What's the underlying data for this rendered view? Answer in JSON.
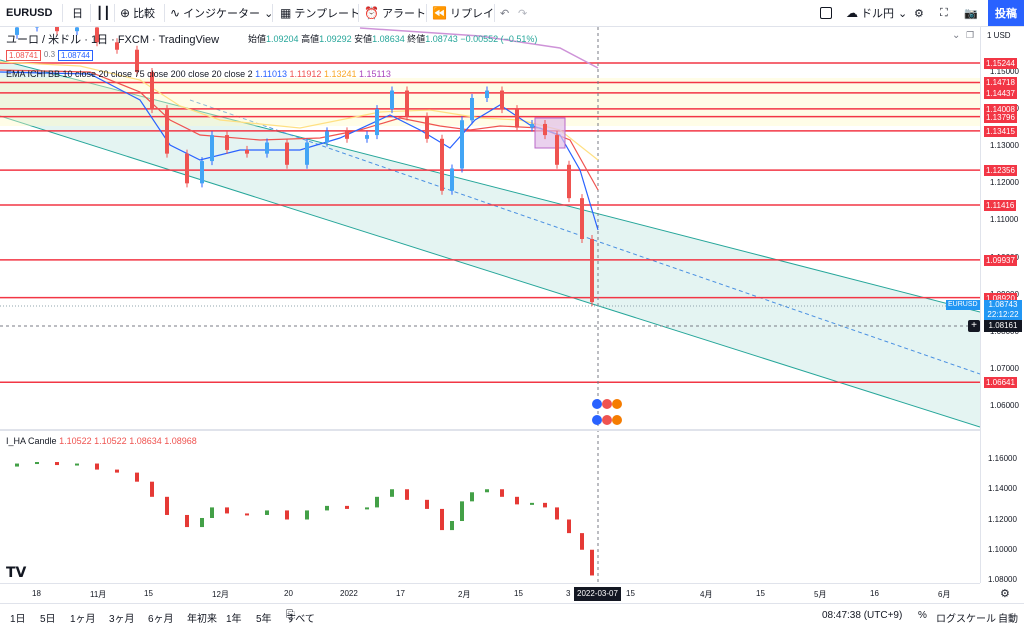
{
  "toolbar": {
    "symbol": "EURUSD",
    "interval": "日",
    "compare": "比較",
    "indicators": "インジケーター",
    "templates": "テンプレート",
    "alert": "アラート",
    "replay": "リプレイ",
    "currency": "ドル円",
    "post": "投稿"
  },
  "header": {
    "title": "ユーロ / 米ドル · 1日 · FXCM · TradingView",
    "open_label": "始値",
    "open": "1.09204",
    "high_label": "高値",
    "high": "1.09292",
    "low_label": "安値",
    "low": "1.08634",
    "close_label": "終値",
    "close": "1.08743",
    "change": "−0.00552 (−0.51%)",
    "sell_price": "1.08741",
    "spread": "0.3",
    "buy_price": "1.08744",
    "currency_unit": "1 USD"
  },
  "indicators": {
    "ichi": {
      "name": "EMA ICHI BB 10 close 20 close 75 close 200 close 20 close 2",
      "v1": "1.11013",
      "v2": "1.11912",
      "v3": "1.13241",
      "v4": "1.15113"
    },
    "ha": {
      "name": "I_HA Candle",
      "v1": "1.10522",
      "v2": "1.10522",
      "v3": "1.08634",
      "v4": "1.08968"
    }
  },
  "price_axis": {
    "ticks": [
      "1.15000",
      "1.14000",
      "1.13000",
      "1.12000",
      "1.11000",
      "1.10000",
      "1.09000",
      "1.08000",
      "1.07000",
      "1.06000"
    ],
    "levels": [
      "1.15244",
      "1.14718",
      "1.14437",
      "1.14008",
      "1.13796",
      "1.13415",
      "1.12356",
      "1.11416",
      "1.09937",
      "1.08920",
      "1.06641"
    ],
    "current_label": "EURUSD",
    "current_price": "1.08743",
    "countdown": "22:12:22",
    "crosshair_price": "1.08161",
    "ha_ticks": [
      "1.16000",
      "1.14000",
      "1.12000",
      "1.10000",
      "1.08000"
    ]
  },
  "time_axis": {
    "labels": [
      "18",
      "11月",
      "15",
      "12月",
      "20",
      "2022",
      "17",
      "2月",
      "15",
      "3",
      "15",
      "4月",
      "15",
      "5月",
      "16",
      "6月"
    ],
    "crosshair_date": "2022-03-07"
  },
  "bottom": {
    "ranges": [
      "1日",
      "5日",
      "1ヶ月",
      "3ヶ月",
      "6ヶ月",
      "年初来",
      "1年",
      "5年",
      "すべて"
    ],
    "clock": "08:47:38 (UTC+9)",
    "percent": "%",
    "log": "ログスケール",
    "auto": "自動"
  },
  "colors": {
    "accent": "#2962ff",
    "up": "#26a69a",
    "down": "#ef5350",
    "level": "#f23645",
    "channel": "#26a69a"
  }
}
